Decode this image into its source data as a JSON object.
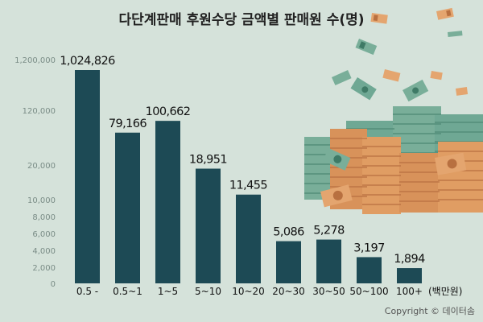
{
  "chart_data": {
    "type": "bar",
    "title": "다단계판매 후원수당 금액별 판매원 수(명)",
    "categories": [
      "0.5 -",
      "0.5~1",
      "1~5",
      "5~10",
      "10~20",
      "20~30",
      "30~50",
      "50~100",
      "100+"
    ],
    "values": [
      1024826,
      79166,
      100662,
      18951,
      11455,
      5086,
      5278,
      3197,
      1894
    ],
    "value_labels": [
      "1,024,826",
      "79,166",
      "100,662",
      "18,951",
      "11,455",
      "5,086",
      "5,278",
      "3,197",
      "1,894"
    ],
    "x_unit": "(백만원)",
    "y_ticks": [
      {
        "value": 0,
        "label": "0"
      },
      {
        "value": 2000,
        "label": "2,000"
      },
      {
        "value": 4000,
        "label": "4,000"
      },
      {
        "value": 6000,
        "label": "6,000"
      },
      {
        "value": 8000,
        "label": "8,000"
      },
      {
        "value": 10000,
        "label": "10,000"
      },
      {
        "value": 20000,
        "label": "20,000"
      },
      {
        "value": 120000,
        "label": "120,000"
      },
      {
        "value": 1200000,
        "label": "1,200,000"
      }
    ],
    "ylim": [
      0,
      1200000
    ],
    "y_scale": "broken (piecewise, nonlinear)",
    "bar_color": "#1d4a55",
    "grid": false,
    "legend": "none"
  },
  "copyright": "Copyright © 데이터솜",
  "colors": {
    "background": "#d5e2da",
    "bar": "#1d4a55",
    "banknote_green": "#6fa894",
    "banknote_orange": "#d8925a"
  },
  "decoration": "money-pile-icon"
}
